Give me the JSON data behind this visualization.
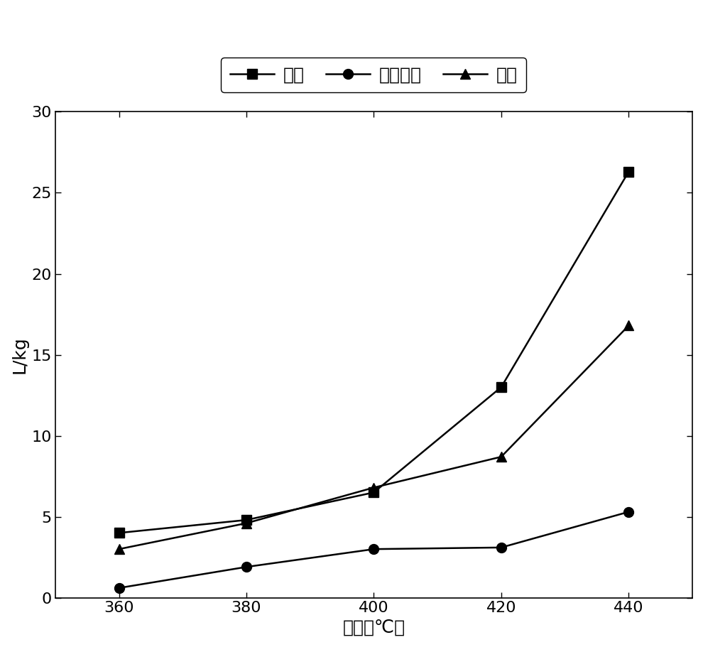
{
  "x": [
    360,
    380,
    400,
    420,
    440
  ],
  "hydrogen": [
    4.0,
    4.8,
    6.5,
    13.0,
    26.3
  ],
  "co": [
    0.6,
    1.9,
    3.0,
    3.1,
    5.3
  ],
  "methane": [
    3.0,
    4.6,
    6.8,
    8.7,
    16.8
  ],
  "xlabel": "温度（℃）",
  "ylabel": "L/kg",
  "legend_hydrogen": "氢气",
  "legend_co": "一氧化碳",
  "legend_methane": "甲烷",
  "ylim": [
    0,
    30
  ],
  "yticks": [
    0,
    5,
    10,
    15,
    20,
    25,
    30
  ],
  "xticks": [
    360,
    380,
    400,
    420,
    440
  ],
  "line_color": "#000000",
  "background_color": "#ffffff",
  "label_fontsize": 18,
  "tick_fontsize": 16,
  "legend_fontsize": 18,
  "linewidth": 1.8,
  "marker_size": 10
}
